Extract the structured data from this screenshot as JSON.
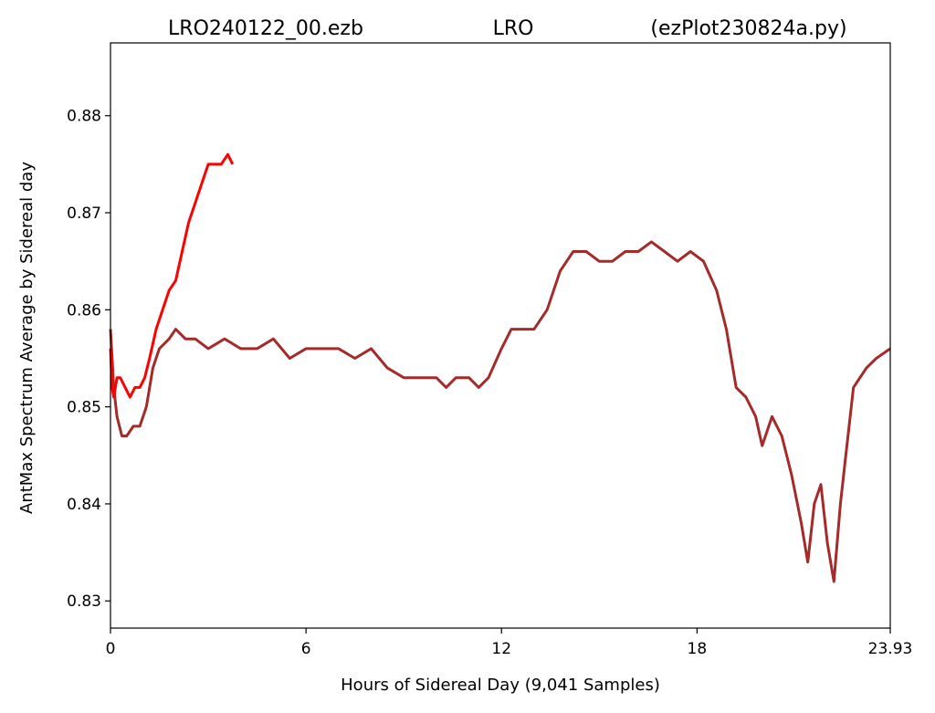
{
  "chart_data": {
    "type": "line",
    "title_parts": [
      "LRO240122_00.ezb",
      "LRO",
      "(ezPlot230824a.py)"
    ],
    "xlabel": "Hours of Sidereal Day  (9,041 Samples)",
    "ylabel": "AntMax Spectrum Average by Sidereal day",
    "xlim": [
      0,
      23.93
    ],
    "ylim": [
      0.8272,
      0.8875
    ],
    "xticks": [
      0,
      6,
      12,
      18,
      23.93
    ],
    "xtick_labels": [
      "0",
      "6",
      "12",
      "18",
      "23.93"
    ],
    "yticks": [
      0.83,
      0.84,
      0.85,
      0.86,
      0.87,
      0.88
    ],
    "ytick_labels": [
      "0.83",
      "0.84",
      "0.85",
      "0.86",
      "0.87",
      "0.88"
    ],
    "grid": false,
    "legend": "none",
    "series": [
      {
        "color": "#a52a2a",
        "x": [
          0.0,
          0.1,
          0.2,
          0.35,
          0.5,
          0.7,
          0.9,
          1.1,
          1.3,
          1.5,
          1.8,
          2.0,
          2.3,
          2.6,
          3.0,
          3.5,
          4.0,
          4.5,
          5.0,
          5.5,
          6.0,
          6.5,
          7.0,
          7.5,
          8.0,
          8.5,
          9.0,
          9.5,
          10.0,
          10.3,
          10.6,
          11.0,
          11.3,
          11.6,
          12.0,
          12.3,
          12.6,
          13.0,
          13.4,
          13.8,
          14.2,
          14.6,
          15.0,
          15.4,
          15.8,
          16.2,
          16.6,
          17.0,
          17.4,
          17.8,
          18.2,
          18.6,
          18.9,
          19.2,
          19.5,
          19.8,
          20.0,
          20.3,
          20.6,
          20.9,
          21.2,
          21.4,
          21.6,
          21.8,
          22.0,
          22.2,
          22.4,
          22.6,
          22.8,
          23.0,
          23.2,
          23.5,
          23.93
        ],
        "values": [
          0.858,
          0.852,
          0.849,
          0.847,
          0.847,
          0.848,
          0.848,
          0.85,
          0.854,
          0.856,
          0.857,
          0.858,
          0.857,
          0.857,
          0.856,
          0.857,
          0.856,
          0.856,
          0.857,
          0.855,
          0.856,
          0.856,
          0.856,
          0.855,
          0.856,
          0.854,
          0.853,
          0.853,
          0.853,
          0.852,
          0.853,
          0.853,
          0.852,
          0.853,
          0.856,
          0.858,
          0.858,
          0.858,
          0.86,
          0.864,
          0.866,
          0.866,
          0.865,
          0.865,
          0.866,
          0.866,
          0.867,
          0.866,
          0.865,
          0.866,
          0.865,
          0.862,
          0.858,
          0.852,
          0.851,
          0.849,
          0.846,
          0.849,
          0.847,
          0.843,
          0.838,
          0.834,
          0.84,
          0.842,
          0.836,
          0.832,
          0.84,
          0.846,
          0.852,
          0.853,
          0.854,
          0.855,
          0.856
        ]
      },
      {
        "color": "#ff0000",
        "x": [
          0.0,
          0.05,
          0.1,
          0.2,
          0.3,
          0.45,
          0.6,
          0.75,
          0.9,
          1.05,
          1.2,
          1.4,
          1.6,
          1.8,
          2.0,
          2.2,
          2.4,
          2.6,
          2.8,
          3.0,
          3.2,
          3.4,
          3.6,
          3.75
        ],
        "values": [
          0.856,
          0.852,
          0.851,
          0.853,
          0.853,
          0.852,
          0.851,
          0.852,
          0.852,
          0.853,
          0.855,
          0.858,
          0.86,
          0.862,
          0.863,
          0.866,
          0.869,
          0.871,
          0.873,
          0.875,
          0.875,
          0.875,
          0.876,
          0.875
        ]
      }
    ]
  }
}
